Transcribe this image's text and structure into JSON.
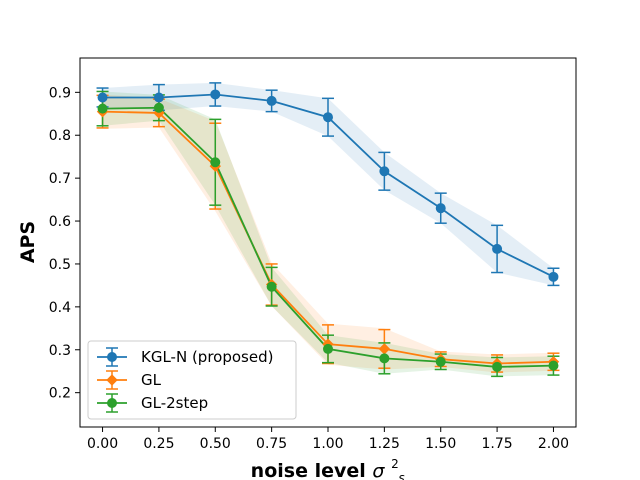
{
  "chart_data": {
    "type": "line",
    "title": "",
    "xlabel": "noise level",
    "xlabel_symbol": "σ",
    "xlabel_superscript": "2",
    "xlabel_subscript": "s",
    "ylabel": "APS",
    "x": [
      0.0,
      0.25,
      0.5,
      0.75,
      1.0,
      1.25,
      1.5,
      1.75,
      2.0
    ],
    "xticks": [
      "0.00",
      "0.25",
      "0.50",
      "0.75",
      "1.00",
      "1.25",
      "1.50",
      "1.75",
      "2.00"
    ],
    "yticks": [
      "0.2",
      "0.3",
      "0.4",
      "0.5",
      "0.6",
      "0.7",
      "0.8",
      "0.9"
    ],
    "xlim": [
      -0.1,
      2.1
    ],
    "ylim": [
      0.12,
      0.98
    ],
    "grid": false,
    "legend_position": "bottom-left",
    "series": [
      {
        "name": "KGL-N (proposed)",
        "color": "#1f77b4",
        "marker": "circle",
        "values": [
          0.888,
          0.888,
          0.895,
          0.88,
          0.842,
          0.716,
          0.63,
          0.535,
          0.47
        ],
        "err": [
          0.022,
          0.03,
          0.027,
          0.025,
          0.044,
          0.044,
          0.035,
          0.055,
          0.02
        ],
        "band": [
          0.022,
          0.03,
          0.027,
          0.025,
          0.044,
          0.044,
          0.035,
          0.055,
          0.02
        ]
      },
      {
        "name": "GL",
        "color": "#ff7f0e",
        "marker": "diamond",
        "values": [
          0.855,
          0.852,
          0.728,
          0.452,
          0.313,
          0.302,
          0.278,
          0.268,
          0.272
        ],
        "err": [
          0.038,
          0.032,
          0.1,
          0.048,
          0.045,
          0.045,
          0.017,
          0.02,
          0.02
        ],
        "band": [
          0.04,
          0.034,
          0.105,
          0.05,
          0.048,
          0.048,
          0.018,
          0.021,
          0.021
        ]
      },
      {
        "name": "GL-2step",
        "color": "#2ca02c",
        "marker": "circle",
        "values": [
          0.862,
          0.864,
          0.737,
          0.447,
          0.302,
          0.28,
          0.272,
          0.26,
          0.263
        ],
        "err": [
          0.04,
          0.03,
          0.1,
          0.045,
          0.032,
          0.036,
          0.018,
          0.022,
          0.022
        ],
        "band": [
          0.04,
          0.03,
          0.1,
          0.045,
          0.032,
          0.036,
          0.018,
          0.022,
          0.022
        ]
      }
    ]
  }
}
